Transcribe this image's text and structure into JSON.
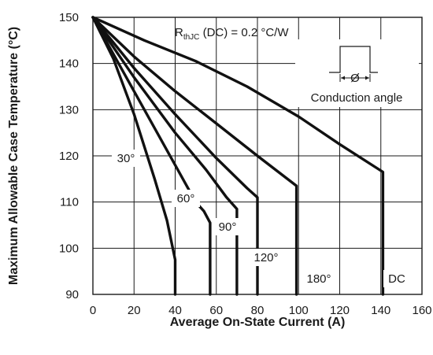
{
  "chart_data": {
    "type": "line",
    "title": "",
    "xlabel": "Average On-State Current (A)",
    "ylabel": "Maximum Allowable Case Temperature (°C)",
    "xlim": [
      0,
      160
    ],
    "ylim": [
      90,
      150
    ],
    "x_ticks": [
      "0",
      "20",
      "40",
      "60",
      "80",
      "100",
      "120",
      "140",
      "160"
    ],
    "y_ticks": [
      "90",
      "100",
      "110",
      "120",
      "130",
      "140",
      "150"
    ],
    "grid": true,
    "annotations": {
      "rth_prefix": "R",
      "rth_sub": "thJC",
      "rth_suffix": " (DC) = 0.2 °C/W",
      "conduction_angle": "Conduction angle",
      "phi": "Ø"
    },
    "series": [
      {
        "name": "30°",
        "label": "30°",
        "points": [
          [
            0,
            150
          ],
          [
            10,
            141
          ],
          [
            20,
            129
          ],
          [
            30,
            115
          ],
          [
            36,
            106
          ],
          [
            40,
            97.5
          ],
          [
            40,
            90
          ]
        ]
      },
      {
        "name": "60°",
        "label": "60°",
        "points": [
          [
            0,
            150
          ],
          [
            15,
            138
          ],
          [
            30,
            126
          ],
          [
            40,
            118
          ],
          [
            50,
            110
          ],
          [
            54,
            108
          ],
          [
            57,
            105.5
          ],
          [
            57,
            90
          ]
        ]
      },
      {
        "name": "90°",
        "label": "90°",
        "points": [
          [
            0,
            150
          ],
          [
            20,
            137
          ],
          [
            40,
            125
          ],
          [
            55,
            117
          ],
          [
            65,
            111
          ],
          [
            70,
            108.5
          ],
          [
            70,
            90
          ]
        ]
      },
      {
        "name": "120°",
        "label": "120°",
        "points": [
          [
            0,
            150
          ],
          [
            20,
            139
          ],
          [
            40,
            129
          ],
          [
            60,
            119.5
          ],
          [
            75,
            113
          ],
          [
            80,
            111
          ],
          [
            80,
            90
          ]
        ]
      },
      {
        "name": "180°",
        "label": "180°",
        "points": [
          [
            0,
            150
          ],
          [
            20,
            141.5
          ],
          [
            40,
            134
          ],
          [
            60,
            127
          ],
          [
            80,
            120
          ],
          [
            99,
            113.5
          ],
          [
            99,
            90
          ]
        ]
      },
      {
        "name": "DC",
        "label": "DC",
        "points": [
          [
            0,
            150
          ],
          [
            25,
            145
          ],
          [
            50,
            140.5
          ],
          [
            75,
            135
          ],
          [
            100,
            128.5
          ],
          [
            120,
            122.5
          ],
          [
            141,
            116.5
          ],
          [
            141,
            90
          ]
        ]
      }
    ]
  }
}
